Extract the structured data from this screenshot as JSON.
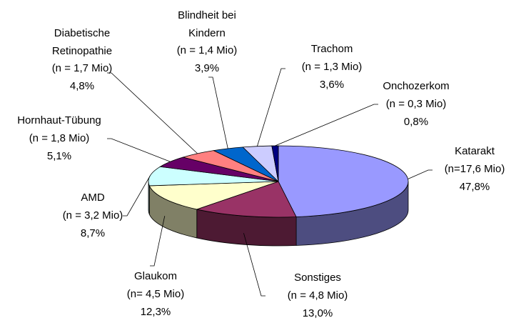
{
  "chart_data": {
    "type": "pie3d",
    "categories": [
      "Katarakt",
      "Sonstiges",
      "Glaukom",
      "AMD",
      "Hornhaut-Tübung",
      "Diabetische\nRetinopathie",
      "Blindheit bei\nKindern",
      "Trachom",
      "Onchozerkom"
    ],
    "count_labels": [
      "(n=17,6 Mio)",
      "(n = 4,8 Mio)",
      "(n= 4,5 Mio)",
      "(n = 3,2 Mio)",
      "(n = 1,8 Mio)",
      "(n = 1,7 Mio)",
      "(n = 1,4 Mio)",
      "(n = 1,3 Mio)",
      "(n = 0,3 Mio)"
    ],
    "values": [
      47.8,
      13.0,
      12.3,
      8.7,
      5.1,
      4.8,
      3.9,
      3.6,
      0.8
    ],
    "value_labels": [
      "47,8%",
      "13,0%",
      "12,3%",
      "8,7%",
      "5,1%",
      "4,8%",
      "3,9%",
      "3,6%",
      "0,8%"
    ],
    "colors": [
      "#9999ff",
      "#993366",
      "#ffffcc",
      "#ccffff",
      "#660066",
      "#ff8080",
      "#0066cc",
      "#ccccff",
      "#000080"
    ]
  }
}
